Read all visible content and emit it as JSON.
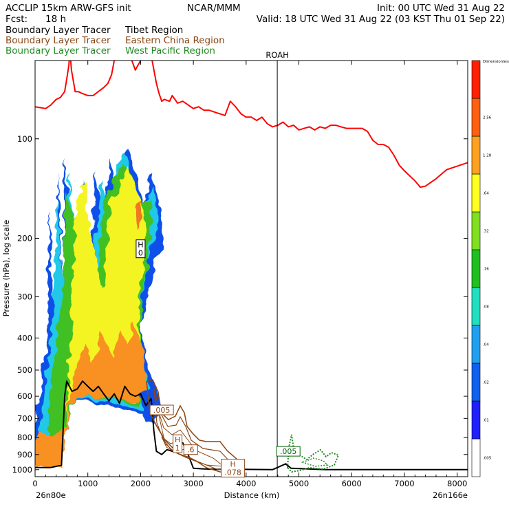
{
  "header": {
    "model": "ACCLIP 15km ARW-GFS init",
    "org": "NCAR/MMM",
    "init": "Init: 00 UTC Wed 31 Aug 22",
    "fcst_label": "Fcst:",
    "fcst_value": "18 h",
    "valid": "Valid: 18 UTC Wed 31 Aug 22 (03 KST Thu 01 Sep 22)"
  },
  "legend": [
    {
      "label": "Boundary Layer Tracer",
      "region": "Tibet Region",
      "color": "#000000"
    },
    {
      "label": "Boundary Layer Tracer",
      "region": "Eastern China Region",
      "color": "#8b4513"
    },
    {
      "label": "Boundary Layer Tracer",
      "region": "West Pacific Region",
      "color": "#228b22"
    }
  ],
  "chart_data": {
    "type": "heatmap",
    "ylabel": "Pressure (hPa), log scale",
    "xlabel": "Distance (km)",
    "xlim": [
      0,
      8200
    ],
    "ylim": [
      1050,
      58
    ],
    "x_ticks": [
      0,
      1000,
      2000,
      3000,
      4000,
      5000,
      6000,
      7000,
      8000
    ],
    "y_ticks": [
      100,
      200,
      300,
      400,
      500,
      600,
      700,
      800,
      900,
      1000
    ],
    "left_endpoint": "26n80e",
    "right_endpoint": "26n166e",
    "marker": {
      "label": "ROAH",
      "x": 4590
    },
    "tropopause": {
      "color": "#ff0000",
      "points": [
        [
          0,
          80
        ],
        [
          200,
          81
        ],
        [
          300,
          79
        ],
        [
          400,
          76
        ],
        [
          480,
          75
        ],
        [
          560,
          72
        ],
        [
          600,
          66
        ],
        [
          640,
          60
        ],
        [
          660,
          54
        ],
        [
          690,
          62
        ],
        [
          760,
          72
        ],
        [
          820,
          72
        ],
        [
          900,
          73
        ],
        [
          1000,
          74
        ],
        [
          1100,
          74
        ],
        [
          1200,
          72
        ],
        [
          1300,
          70
        ],
        [
          1380,
          68
        ],
        [
          1450,
          64
        ],
        [
          1500,
          58
        ],
        [
          1560,
          48
        ],
        [
          1600,
          30
        ],
        [
          1700,
          40
        ],
        [
          1800,
          56
        ],
        [
          1900,
          62
        ],
        [
          2000,
          58
        ],
        [
          2100,
          52
        ],
        [
          2150,
          44
        ],
        [
          2200,
          56
        ],
        [
          2300,
          68
        ],
        [
          2350,
          73
        ],
        [
          2400,
          77
        ],
        [
          2450,
          76
        ],
        [
          2550,
          77
        ],
        [
          2600,
          74
        ],
        [
          2700,
          78
        ],
        [
          2800,
          77
        ],
        [
          3000,
          81
        ],
        [
          3100,
          80
        ],
        [
          3200,
          82
        ],
        [
          3300,
          82
        ],
        [
          3500,
          84
        ],
        [
          3600,
          85
        ],
        [
          3700,
          77
        ],
        [
          3800,
          80
        ],
        [
          3900,
          84
        ],
        [
          4000,
          86
        ],
        [
          4100,
          86
        ],
        [
          4200,
          88
        ],
        [
          4300,
          86
        ],
        [
          4400,
          90
        ],
        [
          4500,
          92
        ],
        [
          4600,
          91
        ],
        [
          4700,
          89
        ],
        [
          4800,
          92
        ],
        [
          4900,
          91
        ],
        [
          5000,
          94
        ],
        [
          5100,
          93
        ],
        [
          5200,
          92
        ],
        [
          5300,
          94
        ],
        [
          5400,
          92
        ],
        [
          5500,
          93
        ],
        [
          5600,
          91
        ],
        [
          5700,
          91
        ],
        [
          5800,
          92
        ],
        [
          5900,
          93
        ],
        [
          6000,
          93
        ],
        [
          6200,
          93
        ],
        [
          6300,
          95
        ],
        [
          6400,
          101
        ],
        [
          6500,
          104
        ],
        [
          6600,
          104
        ],
        [
          6700,
          106
        ],
        [
          6800,
          112
        ],
        [
          6900,
          120
        ],
        [
          7000,
          125
        ],
        [
          7200,
          134
        ],
        [
          7300,
          140
        ],
        [
          7400,
          139
        ],
        [
          7600,
          132
        ],
        [
          7800,
          124
        ],
        [
          8000,
          121
        ],
        [
          8200,
          118
        ]
      ]
    },
    "tibet_tracer_outline": {
      "color": "#000000",
      "points": [
        [
          0,
          985
        ],
        [
          300,
          985
        ],
        [
          500,
          970
        ],
        [
          560,
          600
        ],
        [
          600,
          540
        ],
        [
          700,
          580
        ],
        [
          800,
          570
        ],
        [
          900,
          540
        ],
        [
          1000,
          560
        ],
        [
          1100,
          580
        ],
        [
          1200,
          560
        ],
        [
          1300,
          590
        ],
        [
          1400,
          620
        ],
        [
          1500,
          590
        ],
        [
          1600,
          630
        ],
        [
          1700,
          560
        ],
        [
          1800,
          590
        ],
        [
          1900,
          600
        ],
        [
          2000,
          590
        ],
        [
          2100,
          640
        ],
        [
          2200,
          610
        ],
        [
          2250,
          760
        ],
        [
          2300,
          880
        ],
        [
          2400,
          900
        ],
        [
          2500,
          870
        ],
        [
          2600,
          880
        ],
        [
          2700,
          870
        ],
        [
          2800,
          830
        ],
        [
          2900,
          900
        ],
        [
          3000,
          990
        ],
        [
          3200,
          995
        ],
        [
          3500,
          998
        ],
        [
          4000,
          998
        ],
        [
          4500,
          1000
        ],
        [
          4750,
          960
        ],
        [
          4850,
          990
        ],
        [
          5500,
          1000
        ],
        [
          6000,
          1000
        ],
        [
          8200,
          1000
        ]
      ]
    },
    "colorbar": {
      "levels": [
        ".005",
        ".01",
        ".02",
        ".04",
        ".08",
        ".16",
        ".32",
        ".64",
        "1.28",
        "2.56",
        "Dimensionless"
      ],
      "colors": [
        "#ffffff",
        "#2020ff",
        "#1060f0",
        "#20a0f0",
        "#20e0c0",
        "#20c020",
        "#80e020",
        "#ffff20",
        "#ffa020",
        "#ff6010",
        "#ff2000"
      ]
    },
    "annotations": [
      {
        "text": "H",
        "sub": "0",
        "x": 2000,
        "p": 215,
        "color": "#000000"
      },
      {
        "text": ".005",
        "x": 2400,
        "p": 660,
        "color": "#8b4513"
      },
      {
        "text": "H",
        "sub": "1",
        "x": 2700,
        "p": 835,
        "color": "#8b4513"
      },
      {
        "text": ".6",
        "x": 2950,
        "p": 870,
        "color": "#8b4513"
      },
      {
        "text": "H",
        "sub": ".078",
        "x": 3750,
        "p": 990,
        "color": "#8b4513"
      },
      {
        "text": ".005",
        "x": 4800,
        "p": 880,
        "color": "#006400"
      }
    ]
  }
}
